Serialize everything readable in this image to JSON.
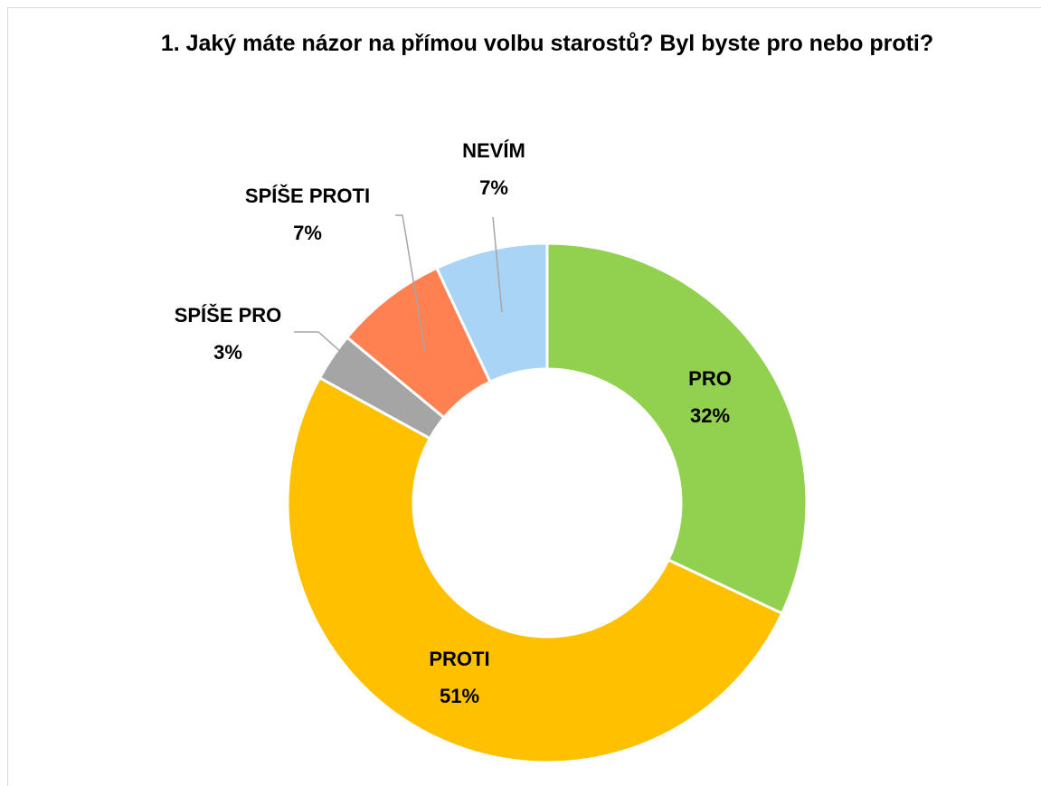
{
  "chart_data": {
    "type": "donut",
    "title": "1. Jaký máte názor na přímou volbu starostů? Byl byste pro nebo proti?",
    "categories": [
      "PRO",
      "PROTI",
      "SPÍŠE PRO",
      "SPÍŠE PROTI",
      "NEVÍM"
    ],
    "values": [
      32,
      51,
      3,
      7,
      7
    ],
    "value_labels": [
      "32%",
      "51%",
      "3%",
      "7%",
      "7%"
    ],
    "colors": [
      "#92d050",
      "#ffc000",
      "#a5a5a5",
      "#ff8050",
      "#a9d4f5"
    ]
  }
}
